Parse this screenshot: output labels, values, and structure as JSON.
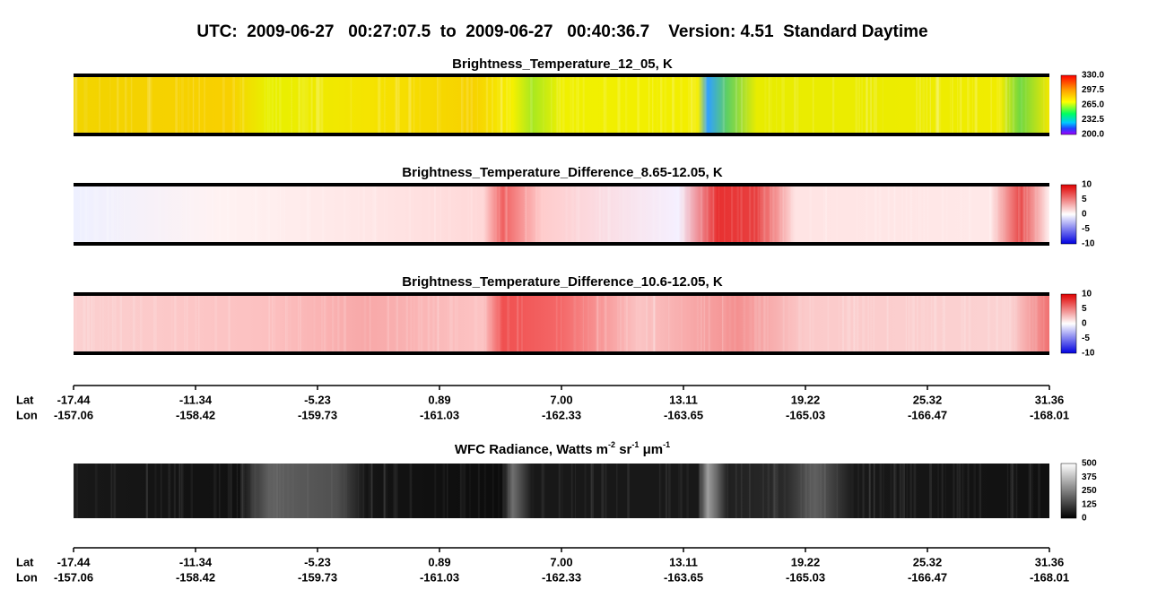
{
  "header": {
    "title": "UTC:  2009-06-27   00:27:07.5  to  2009-06-27   00:40:36.7    Version: 4.51  Standard Daytime"
  },
  "panels": [
    {
      "title": "Brightness_Temperature_12_05, K",
      "colorbar": [
        "330.0",
        "297.5",
        "265.0",
        "232.5",
        "200.0"
      ]
    },
    {
      "title": "Brightness_Temperature_Difference_8.65-12.05, K",
      "colorbar": [
        "10",
        "5",
        "0",
        "-5",
        "-10"
      ]
    },
    {
      "title": "Brightness_Temperature_Difference_10.6-12.05, K",
      "colorbar": [
        "10",
        "5",
        "0",
        "-5",
        "-10"
      ]
    },
    {
      "title_parts": [
        "WFC Radiance, Watts m",
        "-2",
        " sr",
        "-1",
        " μm",
        "-1"
      ],
      "colorbar": [
        "500",
        "375",
        "250",
        "125",
        "0"
      ]
    }
  ],
  "axes": [
    {
      "lat_label": "Lat",
      "lon_label": "Lon",
      "lat": [
        "-17.44",
        "-11.34",
        "-5.23",
        "0.89",
        "7.00",
        "13.11",
        "19.22",
        "25.32",
        "31.36"
      ],
      "lon": [
        "-157.06",
        "-158.42",
        "-159.73",
        "-161.03",
        "-162.33",
        "-163.65",
        "-165.03",
        "-166.47",
        "-168.01"
      ]
    },
    {
      "lat_label": "Lat",
      "lon_label": "Lon",
      "lat": [
        "-17.44",
        "-11.34",
        "-5.23",
        "0.89",
        "7.00",
        "13.11",
        "19.22",
        "25.32",
        "31.36"
      ],
      "lon": [
        "-157.06",
        "-158.42",
        "-159.73",
        "-161.03",
        "-162.33",
        "-163.65",
        "-165.03",
        "-166.47",
        "-168.01"
      ]
    }
  ]
}
